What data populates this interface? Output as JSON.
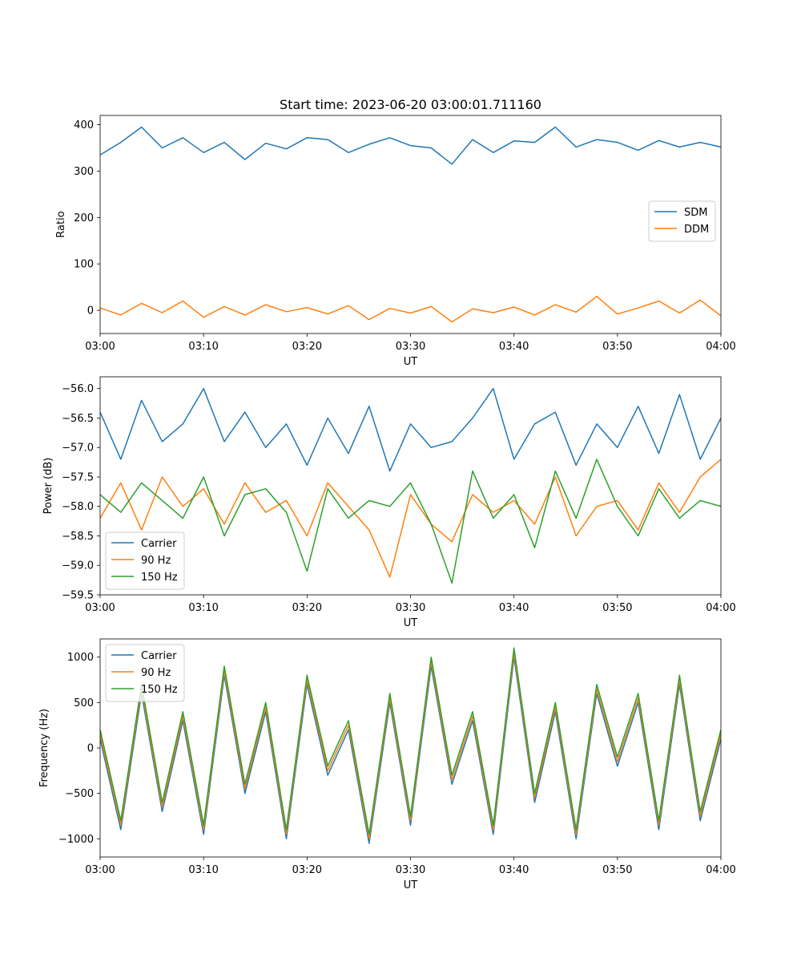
{
  "chart_data": [
    {
      "type": "line",
      "title": "Start time: 2023-06-20 03:00:01.711160",
      "xlabel": "UT",
      "ylabel": "Ratio",
      "xlim": [
        "03:00",
        "04:00"
      ],
      "ylim": [
        -50,
        420
      ],
      "xticks": [
        "03:00",
        "03:10",
        "03:20",
        "03:30",
        "03:40",
        "03:50",
        "04:00"
      ],
      "yticks": [
        0,
        100,
        200,
        300,
        400
      ],
      "grid": false,
      "legend_position": "center-right",
      "series": [
        {
          "name": "SDM",
          "color": "#1f77b4",
          "x": [
            "03:00",
            "03:02",
            "03:04",
            "03:06",
            "03:08",
            "03:10",
            "03:12",
            "03:14",
            "03:16",
            "03:18",
            "03:20",
            "03:22",
            "03:24",
            "03:26",
            "03:28",
            "03:30",
            "03:32",
            "03:34",
            "03:36",
            "03:38",
            "03:40",
            "03:42",
            "03:44",
            "03:46",
            "03:48",
            "03:50",
            "03:52",
            "03:54",
            "03:56",
            "03:58",
            "04:00"
          ],
          "values": [
            335,
            362,
            395,
            350,
            372,
            340,
            362,
            325,
            360,
            348,
            372,
            368,
            340,
            358,
            372,
            355,
            350,
            315,
            368,
            340,
            365,
            362,
            395,
            352,
            368,
            362,
            345,
            366,
            352,
            362,
            352
          ]
        },
        {
          "name": "DDM",
          "color": "#ff7f0e",
          "x": [
            "03:00",
            "03:02",
            "03:04",
            "03:06",
            "03:08",
            "03:10",
            "03:12",
            "03:14",
            "03:16",
            "03:18",
            "03:20",
            "03:22",
            "03:24",
            "03:26",
            "03:28",
            "03:30",
            "03:32",
            "03:34",
            "03:36",
            "03:38",
            "03:40",
            "03:42",
            "03:44",
            "03:46",
            "03:48",
            "03:50",
            "03:52",
            "03:54",
            "03:56",
            "03:58",
            "04:00"
          ],
          "values": [
            5,
            -10,
            15,
            -5,
            20,
            -15,
            8,
            -10,
            12,
            -3,
            6,
            -8,
            10,
            -20,
            4,
            -6,
            8,
            -25,
            3,
            -5,
            7,
            -10,
            12,
            -4,
            30,
            -8,
            5,
            20,
            -6,
            22,
            -12
          ]
        }
      ]
    },
    {
      "type": "line",
      "xlabel": "UT",
      "ylabel": "Power (dB)",
      "xlim": [
        "03:00",
        "04:00"
      ],
      "ylim": [
        -59.5,
        -55.8
      ],
      "xticks": [
        "03:00",
        "03:10",
        "03:20",
        "03:30",
        "03:40",
        "03:50",
        "04:00"
      ],
      "yticks": [
        -56.0,
        -56.5,
        -57.0,
        -57.5,
        -58.0,
        -58.5,
        -59.0,
        -59.5
      ],
      "grid": false,
      "legend_position": "lower-left",
      "series": [
        {
          "name": "Carrier",
          "color": "#1f77b4",
          "x": [
            "03:00",
            "03:02",
            "03:04",
            "03:06",
            "03:08",
            "03:10",
            "03:12",
            "03:14",
            "03:16",
            "03:18",
            "03:20",
            "03:22",
            "03:24",
            "03:26",
            "03:28",
            "03:30",
            "03:32",
            "03:34",
            "03:36",
            "03:38",
            "03:40",
            "03:42",
            "03:44",
            "03:46",
            "03:48",
            "03:50",
            "03:52",
            "03:54",
            "03:56",
            "03:58",
            "04:00"
          ],
          "values": [
            -56.4,
            -57.2,
            -56.2,
            -56.9,
            -56.6,
            -56.0,
            -56.9,
            -56.4,
            -57.0,
            -56.6,
            -57.3,
            -56.5,
            -57.1,
            -56.3,
            -57.4,
            -56.6,
            -57.0,
            -56.9,
            -56.5,
            -56.0,
            -57.2,
            -56.6,
            -56.4,
            -57.3,
            -56.6,
            -57.0,
            -56.3,
            -57.1,
            -56.1,
            -57.2,
            -56.5
          ]
        },
        {
          "name": "90 Hz",
          "color": "#ff7f0e",
          "x": [
            "03:00",
            "03:02",
            "03:04",
            "03:06",
            "03:08",
            "03:10",
            "03:12",
            "03:14",
            "03:16",
            "03:18",
            "03:20",
            "03:22",
            "03:24",
            "03:26",
            "03:28",
            "03:30",
            "03:32",
            "03:34",
            "03:36",
            "03:38",
            "03:40",
            "03:42",
            "03:44",
            "03:46",
            "03:48",
            "03:50",
            "03:52",
            "03:54",
            "03:56",
            "03:58",
            "04:00"
          ],
          "values": [
            -58.2,
            -57.6,
            -58.4,
            -57.5,
            -58.0,
            -57.7,
            -58.3,
            -57.6,
            -58.1,
            -57.9,
            -58.5,
            -57.6,
            -58.0,
            -58.4,
            -59.2,
            -57.8,
            -58.3,
            -58.6,
            -57.8,
            -58.1,
            -57.9,
            -58.3,
            -57.5,
            -58.5,
            -58.0,
            -57.9,
            -58.4,
            -57.6,
            -58.1,
            -57.5,
            -57.2
          ]
        },
        {
          "name": "150 Hz",
          "color": "#2ca02c",
          "x": [
            "03:00",
            "03:02",
            "03:04",
            "03:06",
            "03:08",
            "03:10",
            "03:12",
            "03:14",
            "03:16",
            "03:18",
            "03:20",
            "03:22",
            "03:24",
            "03:26",
            "03:28",
            "03:30",
            "03:32",
            "03:34",
            "03:36",
            "03:38",
            "03:40",
            "03:42",
            "03:44",
            "03:46",
            "03:48",
            "03:50",
            "03:52",
            "03:54",
            "03:56",
            "03:58",
            "04:00"
          ],
          "values": [
            -57.8,
            -58.1,
            -57.6,
            -57.9,
            -58.2,
            -57.5,
            -58.5,
            -57.8,
            -57.7,
            -58.1,
            -59.1,
            -57.7,
            -58.2,
            -57.9,
            -58.0,
            -57.6,
            -58.3,
            -59.3,
            -57.4,
            -58.2,
            -57.8,
            -58.7,
            -57.4,
            -58.2,
            -57.2,
            -58.0,
            -58.5,
            -57.7,
            -58.2,
            -57.9,
            -58.0
          ]
        }
      ]
    },
    {
      "type": "line",
      "xlabel": "UT",
      "ylabel": "Frequency (Hz)",
      "xlim": [
        "03:00",
        "04:00"
      ],
      "ylim": [
        -1200,
        1200
      ],
      "xticks": [
        "03:00",
        "03:10",
        "03:20",
        "03:30",
        "03:40",
        "03:50",
        "04:00"
      ],
      "yticks": [
        1000,
        500,
        0,
        -500,
        -1000
      ],
      "grid": false,
      "legend_position": "upper-left",
      "series": [
        {
          "name": "Carrier",
          "color": "#1f77b4",
          "x": [
            "03:00",
            "03:02",
            "03:04",
            "03:06",
            "03:08",
            "03:10",
            "03:12",
            "03:14",
            "03:16",
            "03:18",
            "03:20",
            "03:22",
            "03:24",
            "03:26",
            "03:28",
            "03:30",
            "03:32",
            "03:34",
            "03:36",
            "03:38",
            "03:40",
            "03:42",
            "03:44",
            "03:46",
            "03:48",
            "03:50",
            "03:52",
            "03:54",
            "03:56",
            "03:58",
            "04:00"
          ],
          "values": [
            100,
            -900,
            600,
            -700,
            300,
            -950,
            800,
            -500,
            400,
            -1000,
            700,
            -300,
            200,
            -1050,
            500,
            -850,
            900,
            -400,
            300,
            -950,
            1000,
            -600,
            400,
            -1000,
            600,
            -200,
            500,
            -900,
            700,
            -800,
            100
          ]
        },
        {
          "name": "90 Hz",
          "color": "#ff7f0e",
          "x": [
            "03:00",
            "03:02",
            "03:04",
            "03:06",
            "03:08",
            "03:10",
            "03:12",
            "03:14",
            "03:16",
            "03:18",
            "03:20",
            "03:22",
            "03:24",
            "03:26",
            "03:28",
            "03:30",
            "03:32",
            "03:34",
            "03:36",
            "03:38",
            "03:40",
            "03:42",
            "03:44",
            "03:46",
            "03:48",
            "03:50",
            "03:52",
            "03:54",
            "03:56",
            "03:58",
            "04:00"
          ],
          "values": [
            150,
            -850,
            650,
            -650,
            350,
            -900,
            850,
            -450,
            450,
            -950,
            750,
            -250,
            250,
            -1000,
            550,
            -800,
            950,
            -350,
            350,
            -900,
            1050,
            -550,
            450,
            -950,
            650,
            -150,
            550,
            -850,
            750,
            -750,
            150
          ]
        },
        {
          "name": "150 Hz",
          "color": "#2ca02c",
          "x": [
            "03:00",
            "03:02",
            "03:04",
            "03:06",
            "03:08",
            "03:10",
            "03:12",
            "03:14",
            "03:16",
            "03:18",
            "03:20",
            "03:22",
            "03:24",
            "03:26",
            "03:28",
            "03:30",
            "03:32",
            "03:34",
            "03:36",
            "03:38",
            "03:40",
            "03:42",
            "03:44",
            "03:46",
            "03:48",
            "03:50",
            "03:52",
            "03:54",
            "03:56",
            "03:58",
            "04:00"
          ],
          "values": [
            200,
            -800,
            700,
            -600,
            400,
            -850,
            900,
            -400,
            500,
            -900,
            800,
            -200,
            300,
            -950,
            600,
            -750,
            1000,
            -300,
            400,
            -850,
            1100,
            -500,
            500,
            -900,
            700,
            -100,
            600,
            -800,
            800,
            -700,
            200
          ]
        }
      ]
    }
  ]
}
